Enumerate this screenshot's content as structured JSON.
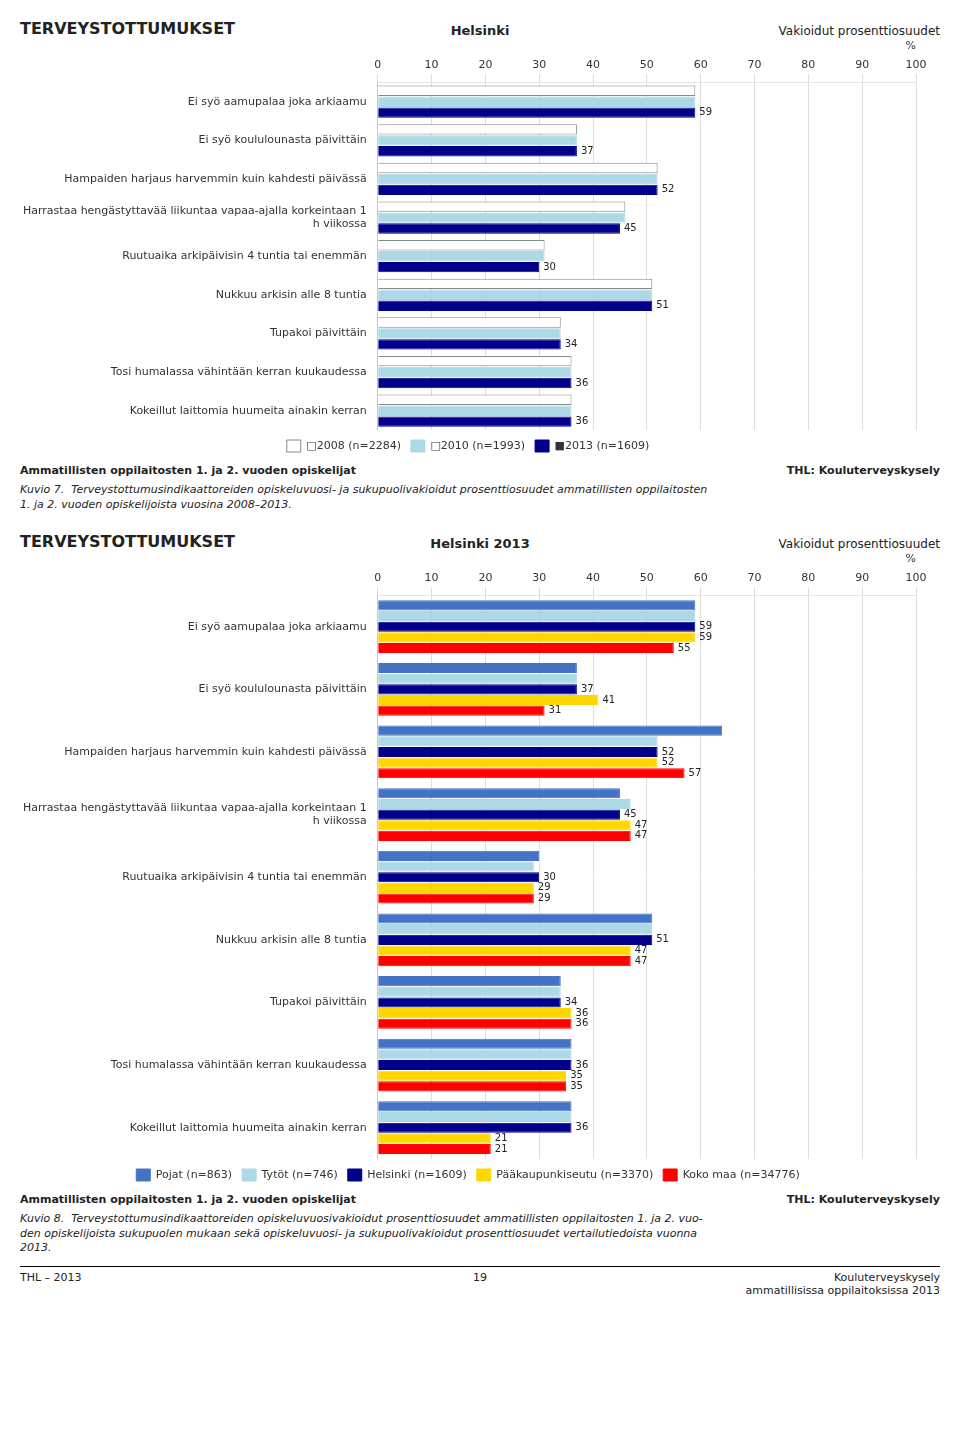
{
  "chart_data": [
    {
      "type": "bar",
      "orientation": "horizontal",
      "title": "TERVEYSTOTTUMUKSET",
      "subtitle": "Helsinki",
      "annotations": [
        "Vakioidut prosenttiosuudet"
      ],
      "x_label": "%",
      "categories": [
        "Ei syö aamupalaa joka arkiaamu",
        "Ei syö koululounasta päivittäin",
        "Hampaiden harjaus harvemmin kuin kahdesti päivässä",
        "Harrastaa hengästyttavää liikuntaa vapaa-ajalla korkeintaan 1\nh viikossa",
        "Ruutuaika arkipäivisin 4 tuntia tai enemmän",
        "Nukkuu arkisin alle 8 tuntia",
        "Tupakoi päivittäin",
        "Tosi humalassa vähintään kerran kuukaudessa",
        "Kokeillut laittomia huumeita ainakin kerran"
      ],
      "series": [
        {
          "name": "□2008 (n=2284)",
          "color": "#FFFFFF",
          "values": [
            59,
            37,
            52,
            46,
            31,
            51,
            34,
            36,
            36
          ]
        },
        {
          "name": "□2010 (n=1993)",
          "color": "#ADD8E6",
          "values": [
            59,
            37,
            52,
            46,
            31,
            51,
            34,
            36,
            36
          ]
        },
        {
          "name": "■2013 (n=1609)",
          "color": "#00008B",
          "values": [
            59,
            37,
            52,
            45,
            30,
            51,
            34,
            36,
            36
          ],
          "data_labels": true
        }
      ],
      "xlim": [
        0,
        100
      ],
      "xticks": [
        0,
        10,
        20,
        30,
        40,
        50,
        60,
        70,
        80,
        90,
        100
      ],
      "grid": true,
      "legend": "bottom",
      "footer": [
        "Ammatillisten oppilaitosten 1. ja 2. vuoden opiskelijat",
        "THL: Kouluterveyskysely"
      ],
      "caption": "Kuvio 7.  Terveystottumusindikaattoreiden opiskeluvuosi- ja sukupuolivakioidut prosenttiosuudet ammatillisten oppilaitosten\n1. ja 2. vuoden opiskelijoista vuosina 2008–2013."
    },
    {
      "type": "bar",
      "orientation": "horizontal",
      "title": "TERVEYSTOTTUMUKSET",
      "subtitle": "Helsinki 2013",
      "annotations": [
        "Vakioidut prosenttiosuudet"
      ],
      "x_label": "%",
      "categories": [
        "Ei syö aamupalaa joka arkiaamu",
        "Ei syö koululounasta päivittäin",
        "Hampaiden harjaus harvemmin kuin kahdesti päivässä",
        "Harrastaa hengästyttavää liikuntaa vapaa-ajalla korkeintaan 1\nh viikossa",
        "Ruutuaika arkipäivisin 4 tuntia tai enemmän",
        "Nukkuu arkisin alle 8 tuntia",
        "Tupakoi päivittäin",
        "Tosi humalassa vähintään kerran kuukaudessa",
        "Kokeillut laittomia huumeita ainakin kerran"
      ],
      "series": [
        {
          "name": "Pojat (n=863)",
          "color": "#4472C4",
          "values": [
            59,
            37,
            64,
            45,
            30,
            51,
            34,
            36,
            36
          ]
        },
        {
          "name": "Tytöt (n=746)",
          "color": "#ADD8E6",
          "values": [
            59,
            37,
            52,
            47,
            29,
            51,
            34,
            36,
            36
          ]
        },
        {
          "name": "Helsinki (n=1609)",
          "color": "#00008B",
          "values": [
            59,
            37,
            52,
            45,
            30,
            51,
            34,
            36,
            36
          ],
          "data_labels": true
        },
        {
          "name": "Pääkaupunkiseutu (n=3370)",
          "color": "#FFD700",
          "values": [
            59,
            41,
            52,
            47,
            29,
            47,
            36,
            35,
            21
          ],
          "data_labels": true
        },
        {
          "name": "Koko maa (n=34776)",
          "color": "#FF0000",
          "values": [
            55,
            31,
            57,
            47,
            29,
            47,
            36,
            35,
            21
          ],
          "data_labels": true
        }
      ],
      "xlim": [
        0,
        100
      ],
      "xticks": [
        0,
        10,
        20,
        30,
        40,
        50,
        60,
        70,
        80,
        90,
        100
      ],
      "grid": true,
      "legend": "bottom",
      "footer": [
        "Ammatillisten oppilaitosten 1. ja 2. vuoden opiskelijat",
        "THL: Kouluterveyskysely"
      ],
      "caption": "Kuvio 8.  Terveystottumusindikaattoreiden opiskeluvuosivakioidut prosenttiosuudet ammatillisten oppilaitosten 1. ja 2. vuo-\nden opiskelijoista sukupuolen mukaan sekä opiskeluvuosi- ja sukupuolivakioidut prosenttiosuudet vertailutiedoista vuonna\n2013.",
      "page_footer": [
        "THL – 2013",
        "19",
        "Kouluterveyskysely\nammatillisissa oppilaitoksissa 2013"
      ]
    }
  ]
}
